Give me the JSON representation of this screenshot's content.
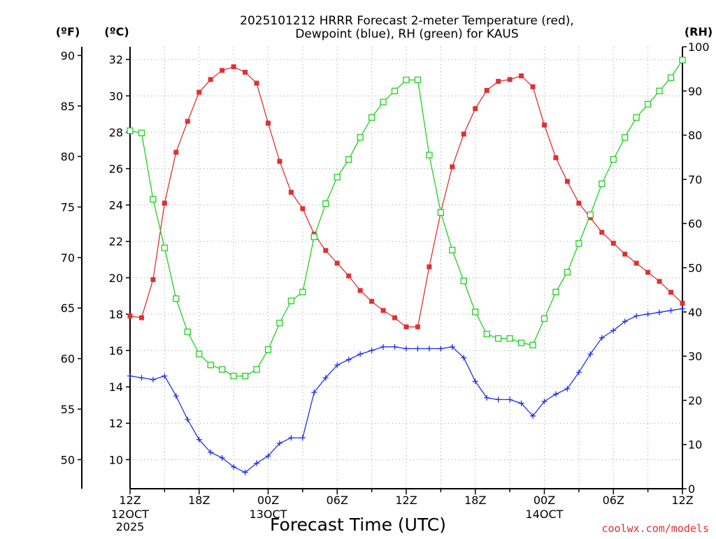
{
  "chart_data": {
    "type": "line",
    "title_lines": [
      "2025101212 HRRR Forecast 2-meter Temperature (red),",
      "Dewpoint (blue), RH (green) for KAUS"
    ],
    "xlabel": "Forecast Time (UTC)",
    "credit": "coolwx.com/models",
    "units": {
      "fahrenheit": "(ºF)",
      "celsius": "(ºC)",
      "rh": "(RH)"
    },
    "x_range": [
      0,
      48
    ],
    "x_ticks": [
      {
        "x": 0,
        "label": "12Z",
        "sub": [
          "12OCT",
          "2025"
        ]
      },
      {
        "x": 6,
        "label": "18Z",
        "sub": []
      },
      {
        "x": 12,
        "label": "00Z",
        "sub": [
          "13OCT"
        ]
      },
      {
        "x": 18,
        "label": "06Z",
        "sub": []
      },
      {
        "x": 24,
        "label": "12Z",
        "sub": []
      },
      {
        "x": 30,
        "label": "18Z",
        "sub": []
      },
      {
        "x": 36,
        "label": "00Z",
        "sub": [
          "14OCT"
        ]
      },
      {
        "x": 42,
        "label": "06Z",
        "sub": []
      },
      {
        "x": 48,
        "label": "12Z",
        "sub": []
      }
    ],
    "y_celsius_range": [
      8.4,
      32.7
    ],
    "y_celsius_ticks": [
      10,
      12,
      14,
      16,
      18,
      20,
      22,
      24,
      26,
      28,
      30,
      32
    ],
    "y_fahrenheit_ticks": [
      50,
      55,
      60,
      65,
      70,
      75,
      80,
      85,
      90
    ],
    "y_rh_range": [
      0,
      100
    ],
    "y_rh_ticks": [
      0,
      10,
      20,
      30,
      40,
      50,
      60,
      70,
      80,
      90,
      100
    ],
    "series": [
      {
        "name": "2-meter Temperature",
        "color": "#e03030",
        "units": "C",
        "marker": "filled-square",
        "values": [
          17.9,
          17.8,
          19.9,
          24.1,
          26.9,
          28.6,
          30.2,
          30.9,
          31.4,
          31.6,
          31.3,
          30.7,
          28.5,
          26.4,
          24.7,
          23.8,
          22.4,
          21.5,
          20.8,
          20.1,
          19.3,
          18.7,
          18.2,
          17.8,
          17.3,
          17.3,
          20.6,
          23.6,
          26.1,
          27.9,
          29.3,
          30.3,
          30.8,
          30.9,
          31.1,
          30.5,
          28.4,
          26.6,
          25.3,
          24.1,
          23.3,
          22.5,
          21.9,
          21.3,
          20.8,
          20.3,
          19.8,
          19.2,
          18.6
        ]
      },
      {
        "name": "Dewpoint",
        "color": "#2030e8",
        "units": "C",
        "marker": "plus",
        "values": [
          14.6,
          14.5,
          14.4,
          14.6,
          13.5,
          12.2,
          11.1,
          10.4,
          10.1,
          9.6,
          9.3,
          9.8,
          10.2,
          10.9,
          11.2,
          11.2,
          13.7,
          14.5,
          15.2,
          15.5,
          15.8,
          16.0,
          16.2,
          16.2,
          16.1,
          16.1,
          16.1,
          16.1,
          16.2,
          15.6,
          14.3,
          13.4,
          13.3,
          13.3,
          13.1,
          12.4,
          13.2,
          13.6,
          13.9,
          14.8,
          15.8,
          16.7,
          17.1,
          17.6,
          17.9,
          18.0,
          18.1,
          18.2,
          18.3
        ]
      },
      {
        "name": "RH",
        "color": "#20d020",
        "units": "%",
        "marker": "open-square",
        "values": [
          81,
          80.5,
          65.5,
          54.5,
          43,
          35.5,
          30.5,
          28,
          27,
          25.5,
          25.5,
          27,
          31.5,
          37.5,
          42.5,
          44.5,
          57,
          64.5,
          70.5,
          74.5,
          79.5,
          84,
          87.5,
          90,
          92.5,
          92.5,
          75.5,
          62.5,
          54,
          47,
          40,
          35,
          34,
          34,
          33,
          32.5,
          38.5,
          44.5,
          49,
          55.5,
          62,
          69,
          74.5,
          79.5,
          84,
          87,
          90,
          93,
          97
        ]
      }
    ]
  }
}
